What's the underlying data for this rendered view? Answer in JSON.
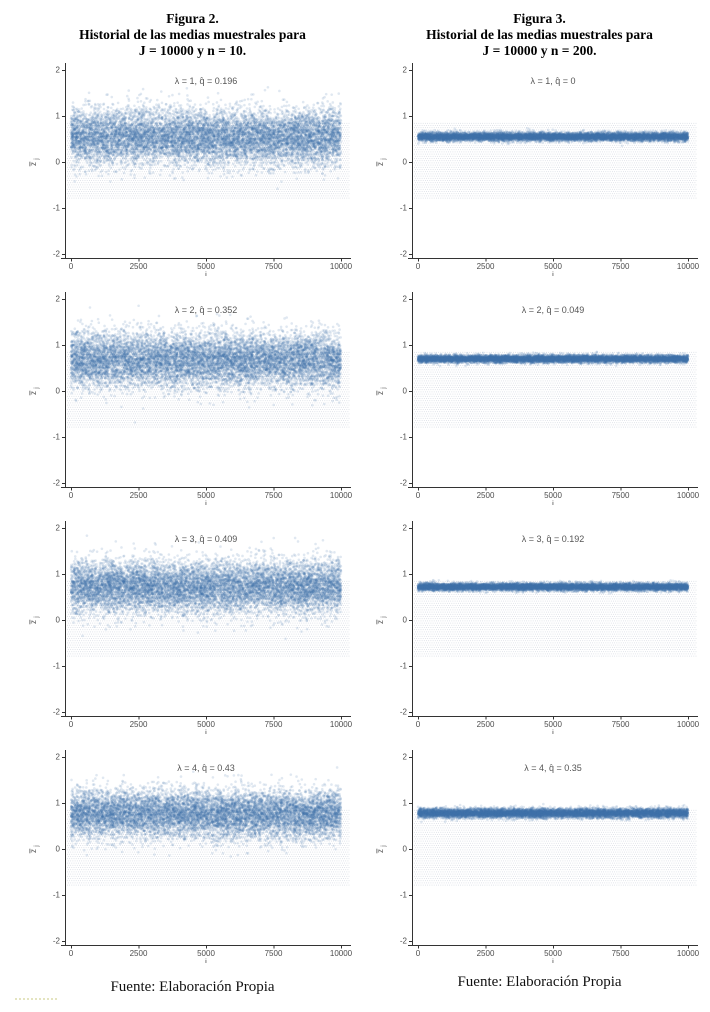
{
  "figures": [
    {
      "title": "Figura 2.",
      "subtitle": "Historial de las medias muestrales para",
      "params": "J = 10000 y n = 10.",
      "caption": "Fuente: Elaboración Propia"
    },
    {
      "title": "Figura 3.",
      "subtitle": "Historial de las medias muestrales para",
      "params": "J = 10000 y n = 200.",
      "caption": "Fuente: Elaboración Propia"
    }
  ],
  "chart_data": [
    {
      "figure": "Figura 2",
      "row": 1,
      "type": "scatter",
      "annotation": "λ = 1, q̂ = 0.196",
      "lambda": 1,
      "q_hat": 0.196,
      "xlabel": "j",
      "ylabel": "z̄j",
      "x_range": [
        0,
        10000
      ],
      "x_ticks": [
        "0",
        "2500",
        "5000",
        "7500",
        "10000"
      ],
      "y_ticks": [
        -2,
        -1,
        0,
        1,
        2
      ],
      "ylim": [
        -2.2,
        2.2
      ],
      "n_points": 10000,
      "cloud_center": 0.55,
      "cloud_sd": 0.3,
      "band": [
        -0.8,
        0.85
      ],
      "grid": false,
      "legend": "none"
    },
    {
      "figure": "Figura 2",
      "row": 2,
      "type": "scatter",
      "annotation": "λ = 2, q̂ = 0.352",
      "lambda": 2,
      "q_hat": 0.352,
      "xlabel": "j",
      "ylabel": "z̄j",
      "x_range": [
        0,
        10000
      ],
      "x_ticks": [
        "0",
        "2500",
        "5000",
        "7500",
        "10000"
      ],
      "y_ticks": [
        -2,
        -1,
        0,
        1,
        2
      ],
      "ylim": [
        -2.2,
        2.2
      ],
      "n_points": 10000,
      "cloud_center": 0.68,
      "cloud_sd": 0.3,
      "band": [
        -0.8,
        0.85
      ],
      "grid": false,
      "legend": "none"
    },
    {
      "figure": "Figura 2",
      "row": 3,
      "type": "scatter",
      "annotation": "λ = 3, q̂ = 0.409",
      "lambda": 3,
      "q_hat": 0.409,
      "xlabel": "j",
      "ylabel": "z̄j",
      "x_range": [
        0,
        10000
      ],
      "x_ticks": [
        "0",
        "2500",
        "5000",
        "7500",
        "10000"
      ],
      "y_ticks": [
        -2,
        -1,
        0,
        1,
        2
      ],
      "ylim": [
        -2.2,
        2.2
      ],
      "n_points": 10000,
      "cloud_center": 0.72,
      "cloud_sd": 0.28,
      "band": [
        -0.8,
        0.85
      ],
      "grid": false,
      "legend": "none"
    },
    {
      "figure": "Figura 2",
      "row": 4,
      "type": "scatter",
      "annotation": "λ = 4, q̂ = 0.43",
      "lambda": 4,
      "q_hat": 0.43,
      "xlabel": "j",
      "ylabel": "z̄j",
      "x_range": [
        0,
        10000
      ],
      "x_ticks": [
        "0",
        "2500",
        "5000",
        "7500",
        "10000"
      ],
      "y_ticks": [
        -2,
        -1,
        0,
        1,
        2
      ],
      "ylim": [
        -2.2,
        2.2
      ],
      "n_points": 10000,
      "cloud_center": 0.76,
      "cloud_sd": 0.26,
      "band": [
        -0.8,
        0.85
      ],
      "grid": false,
      "legend": "none"
    },
    {
      "figure": "Figura 3",
      "row": 1,
      "type": "scatter",
      "annotation": "λ = 1, q̂ = 0",
      "lambda": 1,
      "q_hat": 0,
      "xlabel": "j",
      "ylabel": "z̄j",
      "x_range": [
        0,
        10000
      ],
      "x_ticks": [
        "0",
        "2500",
        "5000",
        "7500",
        "10000"
      ],
      "y_ticks": [
        -2,
        -1,
        0,
        1,
        2
      ],
      "ylim": [
        -2.2,
        2.2
      ],
      "n_points": 10000,
      "cloud_center": 0.55,
      "cloud_sd": 0.045,
      "band": [
        -0.8,
        0.85
      ],
      "grid": false,
      "legend": "none"
    },
    {
      "figure": "Figura 3",
      "row": 2,
      "type": "scatter",
      "annotation": "λ = 2, q̂ = 0.049",
      "lambda": 2,
      "q_hat": 0.049,
      "xlabel": "j",
      "ylabel": "z̄j",
      "x_range": [
        0,
        10000
      ],
      "x_ticks": [
        "0",
        "2500",
        "5000",
        "7500",
        "10000"
      ],
      "y_ticks": [
        -2,
        -1,
        0,
        1,
        2
      ],
      "ylim": [
        -2.2,
        2.2
      ],
      "n_points": 10000,
      "cloud_center": 0.7,
      "cloud_sd": 0.04,
      "band": [
        -0.8,
        0.85
      ],
      "grid": false,
      "legend": "none"
    },
    {
      "figure": "Figura 3",
      "row": 3,
      "type": "scatter",
      "annotation": "λ = 3, q̂ = 0.192",
      "lambda": 3,
      "q_hat": 0.192,
      "xlabel": "j",
      "ylabel": "z̄j",
      "x_range": [
        0,
        10000
      ],
      "x_ticks": [
        "0",
        "2500",
        "5000",
        "7500",
        "10000"
      ],
      "y_ticks": [
        -2,
        -1,
        0,
        1,
        2
      ],
      "ylim": [
        -2.2,
        2.2
      ],
      "n_points": 10000,
      "cloud_center": 0.72,
      "cloud_sd": 0.04,
      "band": [
        -0.8,
        0.85
      ],
      "grid": false,
      "legend": "none"
    },
    {
      "figure": "Figura 3",
      "row": 4,
      "type": "scatter",
      "annotation": "λ = 4, q̂ = 0.35",
      "lambda": 4,
      "q_hat": 0.35,
      "xlabel": "j",
      "ylabel": "z̄j",
      "x_range": [
        0,
        10000
      ],
      "x_ticks": [
        "0",
        "2500",
        "5000",
        "7500",
        "10000"
      ],
      "y_ticks": [
        -2,
        -1,
        0,
        1,
        2
      ],
      "ylim": [
        -2.2,
        2.2
      ],
      "n_points": 10000,
      "cloud_center": 0.78,
      "cloud_sd": 0.05,
      "band": [
        -0.8,
        0.85
      ],
      "grid": false,
      "legend": "none"
    }
  ],
  "colors": {
    "point": "#416EAA",
    "band_dot": "#9AA5B9",
    "axis": "#333333",
    "tick_label": "#4D4D4D",
    "annotation": "#555555",
    "title": "#000000"
  }
}
